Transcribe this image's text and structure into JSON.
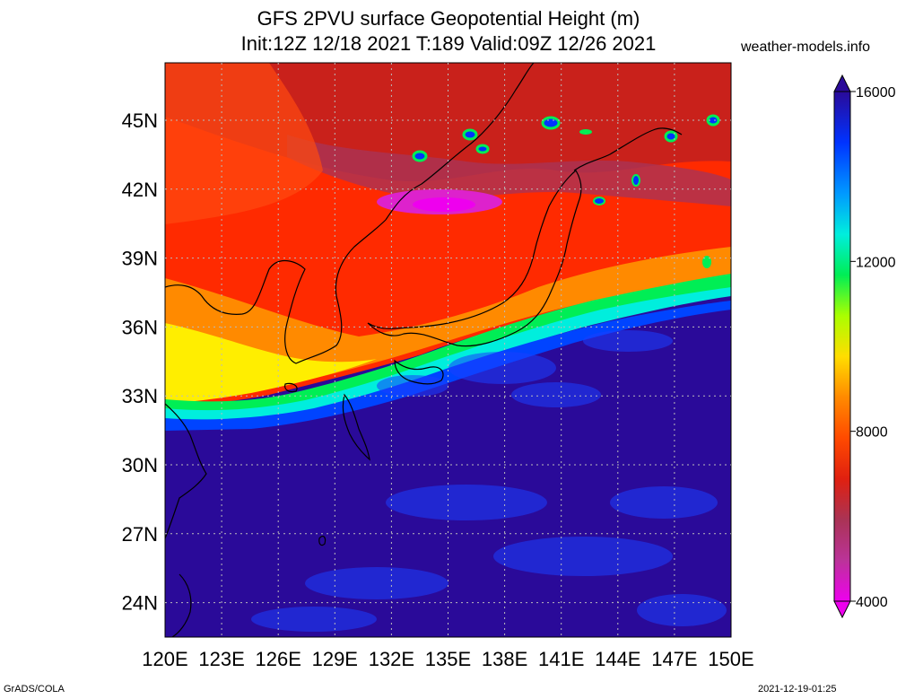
{
  "title_line1": "GFS 2PVU surface Geopotential Height (m)",
  "title_line2": "Init:12Z 12/18 2021 T:189 Valid:09Z 12/26 2021",
  "site": "weather-models.info",
  "footer_left": "GrADS/COLA",
  "footer_right": "2021-12-19-01:25",
  "map": {
    "lon_range": [
      120,
      150
    ],
    "lat_range": [
      22.5,
      47.5
    ],
    "lon_ticks": [
      "120E",
      "123E",
      "126E",
      "129E",
      "132E",
      "135E",
      "138E",
      "141E",
      "144E",
      "147E",
      "150E"
    ],
    "lat_ticks": [
      "24N",
      "27N",
      "30N",
      "33N",
      "36N",
      "39N",
      "42N",
      "45N"
    ],
    "grid": "dotted",
    "colorbar": {
      "labels": [
        "4000",
        "8000",
        "12000",
        "16000"
      ],
      "min": 4000,
      "max": 16000,
      "colors": [
        "#ee00ee",
        "#cc33aa",
        "#aa3355",
        "#c02020",
        "#e02010",
        "#ff2a00",
        "#ff4a00",
        "#ff6a00",
        "#ff8a00",
        "#ffa800",
        "#ffcc00",
        "#ffee00",
        "#eeff00",
        "#aaff00",
        "#55ff00",
        "#00ee33",
        "#00ff99",
        "#00eedd",
        "#00ccff",
        "#0099ff",
        "#0066ff",
        "#0033ff",
        "#1a10cc",
        "#2a0a99"
      ]
    },
    "legend_colors": {
      "low": "#ee00ee",
      "mid_red": "#e02010",
      "yellow": "#ffee00",
      "green": "#00ee33",
      "cyan": "#00eedd",
      "blue": "#0033ff",
      "deep_blue": "#2a0a99"
    }
  }
}
